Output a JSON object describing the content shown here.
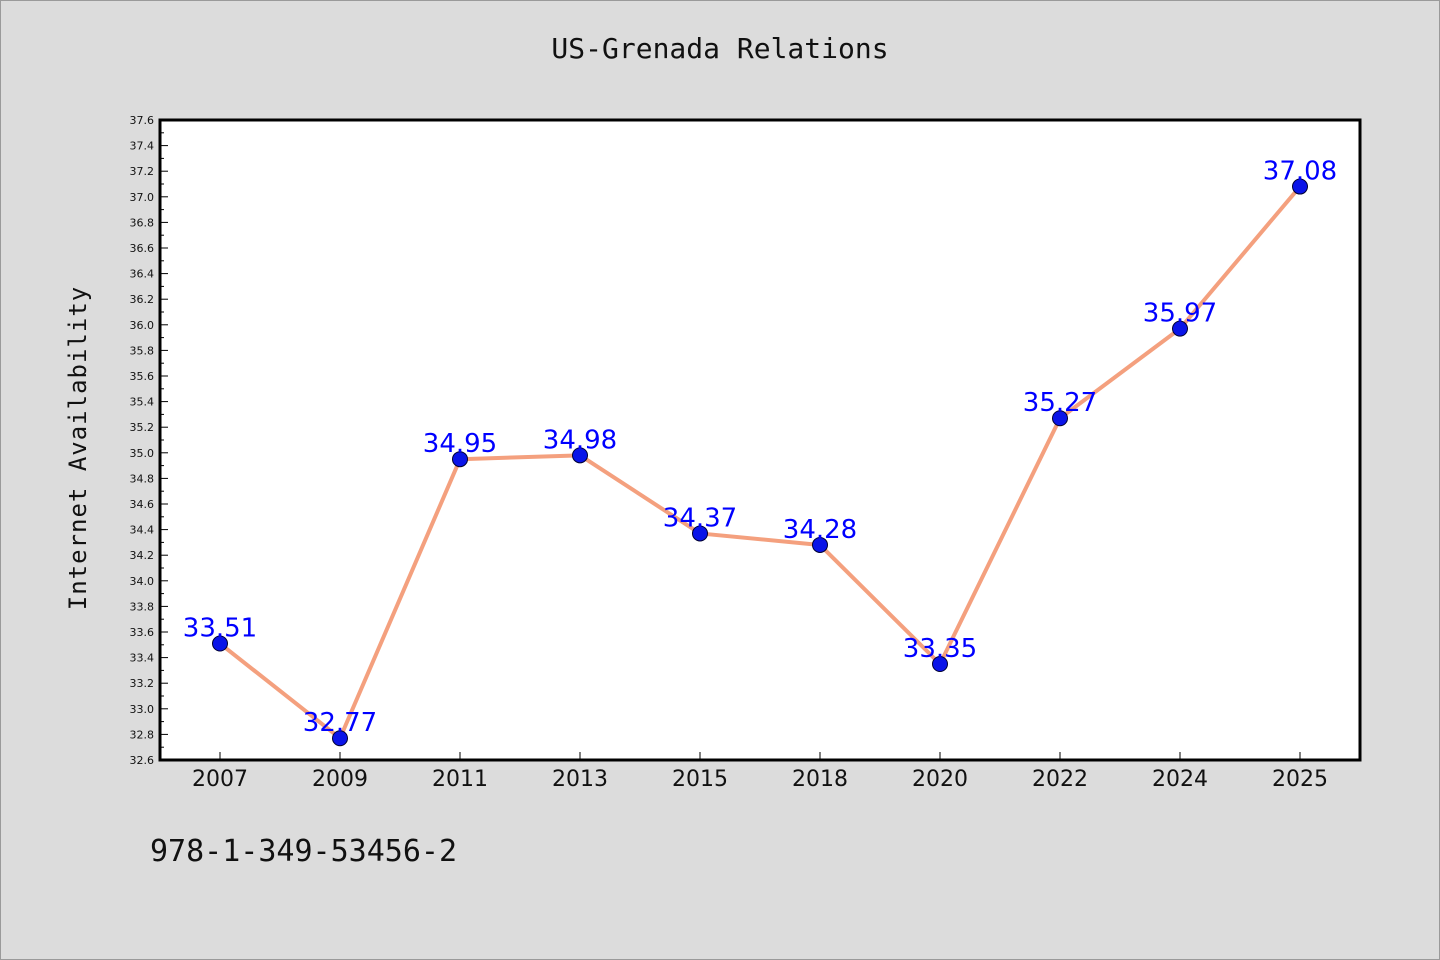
{
  "title": "US-Grenada Relations",
  "footer_text": "978-1-349-53456-2",
  "chart_data": {
    "type": "line",
    "title": "US-Grenada Relations",
    "xlabel": "",
    "ylabel": "Internet Availability",
    "categories": [
      "2007",
      "2009",
      "2011",
      "2013",
      "2015",
      "2018",
      "2020",
      "2022",
      "2024",
      "2025"
    ],
    "series": [
      {
        "values": [
          33.51,
          32.77,
          34.95,
          34.98,
          34.37,
          34.28,
          33.35,
          35.27,
          35.97,
          37.08
        ],
        "data_labels": [
          "33.51",
          "32.77",
          "34.95",
          "34.98",
          "34.37",
          "34.28",
          "33.35",
          "35.27",
          "35.97",
          "37.08"
        ]
      }
    ],
    "ylim": [
      32.6,
      37.6
    ],
    "yticks": [
      "32.6",
      "32.8",
      "33.0",
      "33.2",
      "33.4",
      "33.6",
      "33.8",
      "34.0",
      "34.2",
      "34.4",
      "34.6",
      "34.8",
      "35.0",
      "35.2",
      "35.4",
      "35.6",
      "35.8",
      "36.0",
      "36.2",
      "36.4",
      "36.6",
      "36.8",
      "37.0",
      "37.2",
      "37.4",
      "37.6"
    ],
    "grid": false,
    "legend": "none",
    "colors": {
      "line": "#f4a07e",
      "marker": "#0a14e8",
      "marker_edge": "#000033",
      "data_label": "#0000ff",
      "plot_bg": "#ffffff",
      "figure_bg": "#dcdcdc"
    }
  }
}
